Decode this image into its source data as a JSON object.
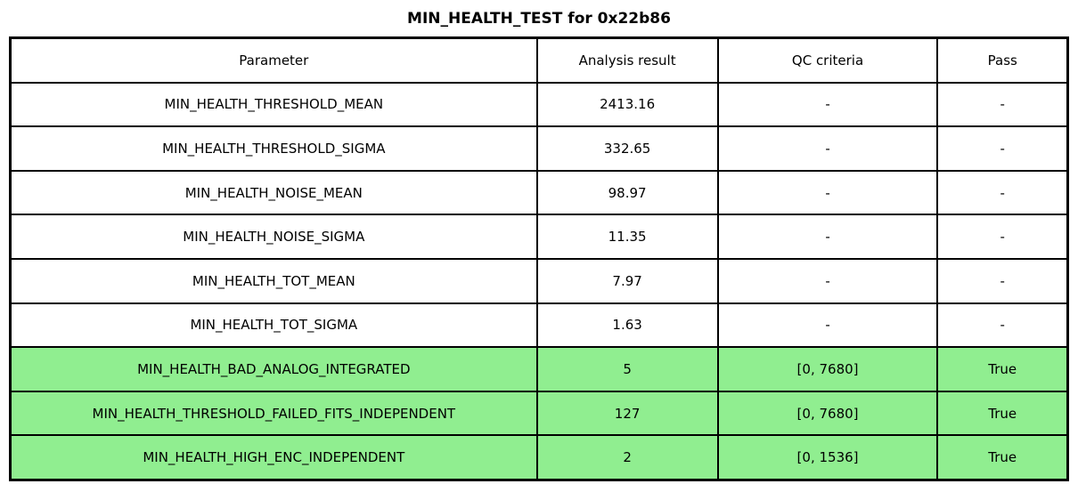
{
  "title": "MIN_HEALTH_TEST for 0x22b86",
  "colors": {
    "highlight_row_bg": "#90EE90",
    "border": "#000000",
    "background": "#FFFFFF",
    "text": "#000000"
  },
  "chart_data": {
    "type": "table",
    "title": "MIN_HEALTH_TEST for 0x22b86",
    "columns": [
      "Parameter",
      "Analysis result",
      "QC criteria",
      "Pass"
    ],
    "rows": [
      [
        "MIN_HEALTH_THRESHOLD_MEAN",
        "2413.16",
        "-",
        "-"
      ],
      [
        "MIN_HEALTH_THRESHOLD_SIGMA",
        "332.65",
        "-",
        "-"
      ],
      [
        "MIN_HEALTH_NOISE_MEAN",
        "98.97",
        "-",
        "-"
      ],
      [
        "MIN_HEALTH_NOISE_SIGMA",
        "11.35",
        "-",
        "-"
      ],
      [
        "MIN_HEALTH_TOT_MEAN",
        "7.97",
        "-",
        "-"
      ],
      [
        "MIN_HEALTH_TOT_SIGMA",
        "1.63",
        "-",
        "-"
      ],
      [
        "MIN_HEALTH_BAD_ANALOG_INTEGRATED",
        "5",
        "[0, 7680]",
        "True"
      ],
      [
        "MIN_HEALTH_THRESHOLD_FAILED_FITS_INDEPENDENT",
        "127",
        "[0, 7680]",
        "True"
      ],
      [
        "MIN_HEALTH_HIGH_ENC_INDEPENDENT",
        "2",
        "[0, 1536]",
        "True"
      ]
    ],
    "highlighted_rows": [
      6,
      7,
      8
    ],
    "highlight_color": "#90EE90",
    "legend": "none",
    "grid": "full-borders"
  }
}
